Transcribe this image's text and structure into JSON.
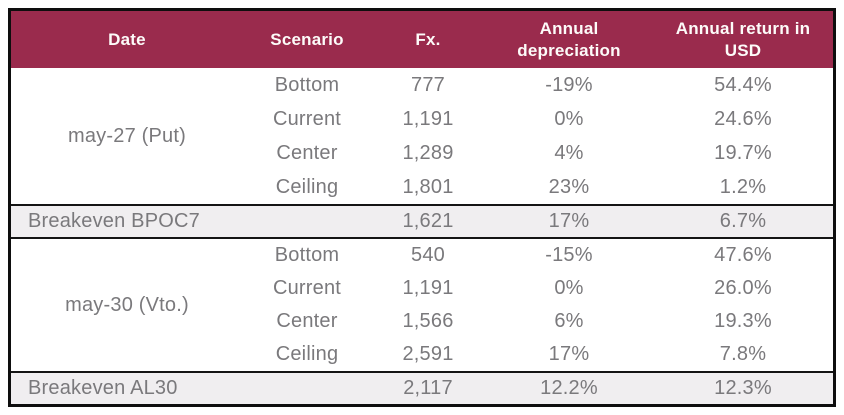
{
  "chart_data": {
    "type": "table",
    "title": "",
    "columns": [
      "Date",
      "Scenario",
      "Fx.",
      "Annual depreciation",
      "Annual return in USD"
    ],
    "groups": [
      {
        "date": "may-27 (Put)",
        "rows": [
          {
            "scenario": "Bottom",
            "fx": "777",
            "depreciation": "-19%",
            "return_usd": "54.4%"
          },
          {
            "scenario": "Current",
            "fx": "1,191",
            "depreciation": "0%",
            "return_usd": "24.6%"
          },
          {
            "scenario": "Center",
            "fx": "1,289",
            "depreciation": "4%",
            "return_usd": "19.7%"
          },
          {
            "scenario": "Ceiling",
            "fx": "1,801",
            "depreciation": "23%",
            "return_usd": "1.2%"
          }
        ]
      },
      {
        "date": "may-30 (Vto.)",
        "rows": [
          {
            "scenario": "Bottom",
            "fx": "540",
            "depreciation": "-15%",
            "return_usd": "47.6%"
          },
          {
            "scenario": "Current",
            "fx": "1,191",
            "depreciation": "0%",
            "return_usd": "26.0%"
          },
          {
            "scenario": "Center",
            "fx": "1,566",
            "depreciation": "6%",
            "return_usd": "19.3%"
          },
          {
            "scenario": "Ceiling",
            "fx": "2,591",
            "depreciation": "17%",
            "return_usd": "7.8%"
          }
        ]
      }
    ],
    "breakevens": [
      {
        "label": "Breakeven BPOC7",
        "fx": "1,621",
        "depreciation": "17%",
        "return_usd": "6.7%"
      },
      {
        "label": "Breakeven AL30",
        "fx": "2,117",
        "depreciation": "12.2%",
        "return_usd": "12.3%"
      }
    ],
    "layout": {
      "legend": "none",
      "grid": "off"
    }
  },
  "colors": {
    "header_bg": "#9A2B4D",
    "header_text": "#FDFBF9",
    "body_text": "#7A797C",
    "breakeven_bg": "#F0EEF0",
    "separator": "#141414",
    "outer_border": "#0E0E0E",
    "row_bg": "#FFFFFF"
  }
}
